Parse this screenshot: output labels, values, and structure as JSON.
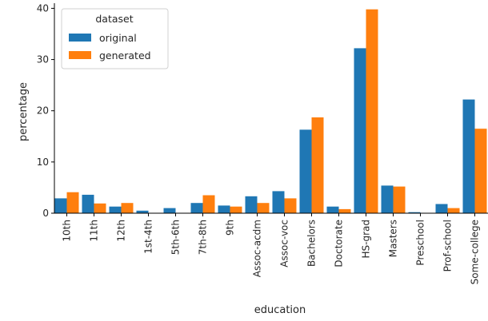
{
  "chart_data": {
    "type": "bar",
    "xlabel": "education",
    "ylabel": "percentage",
    "ylim": [
      0,
      41
    ],
    "yticks": [
      0,
      10,
      20,
      30,
      40
    ],
    "grid": false,
    "categories": [
      "10th",
      "11th",
      "12th",
      "1st-4th",
      "5th-6th",
      "7th-8th",
      "9th",
      "Assoc-acdm",
      "Assoc-voc",
      "Bachelors",
      "Doctorate",
      "HS-grad",
      "Masters",
      "Preschool",
      "Prof-school",
      "Some-college"
    ],
    "legend": {
      "title": "dataset",
      "position": "top-left"
    },
    "series": [
      {
        "name": "original",
        "color": "#1f77b4",
        "values": [
          2.9,
          3.6,
          1.3,
          0.5,
          1.0,
          2.0,
          1.5,
          3.3,
          4.3,
          16.3,
          1.3,
          32.2,
          5.4,
          0.2,
          1.8,
          22.2
        ]
      },
      {
        "name": "generated",
        "color": "#ff7f0e",
        "values": [
          4.1,
          1.9,
          2.0,
          0.0,
          0.0,
          3.5,
          1.3,
          2.0,
          2.9,
          18.7,
          0.8,
          39.8,
          5.2,
          0.0,
          1.0,
          16.5
        ]
      }
    ]
  }
}
